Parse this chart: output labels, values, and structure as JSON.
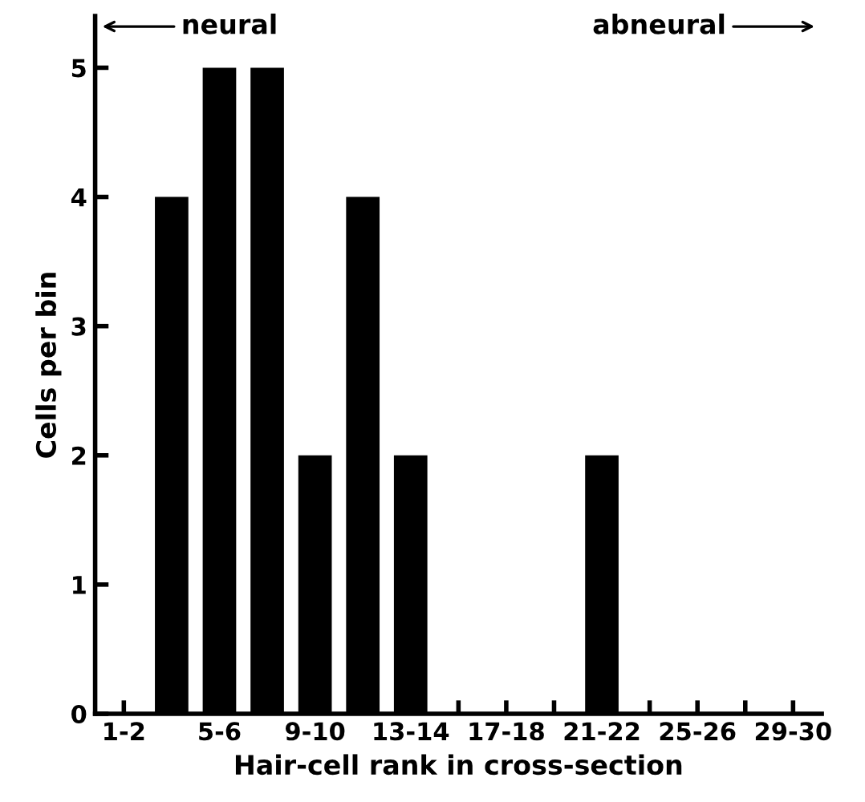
{
  "chart_data": {
    "type": "bar",
    "xlabel": "Hair-cell rank in cross-section",
    "ylabel": "Cells per bin",
    "categories": [
      "1-2",
      null,
      "5-6",
      null,
      "9-10",
      null,
      "13-14",
      null,
      "17-18",
      null,
      "21-22",
      null,
      "25-26",
      null,
      "29-30"
    ],
    "values": [
      0,
      4,
      5,
      5,
      2,
      4,
      2,
      0,
      0,
      0,
      2,
      0,
      0,
      0,
      0
    ],
    "color": "#000000",
    "ylim": [
      0,
      5.4
    ],
    "yticks": [
      0,
      1,
      2,
      3,
      4,
      5
    ],
    "annotations": [
      "neural",
      "abneural"
    ],
    "grid": false,
    "legend": false
  }
}
